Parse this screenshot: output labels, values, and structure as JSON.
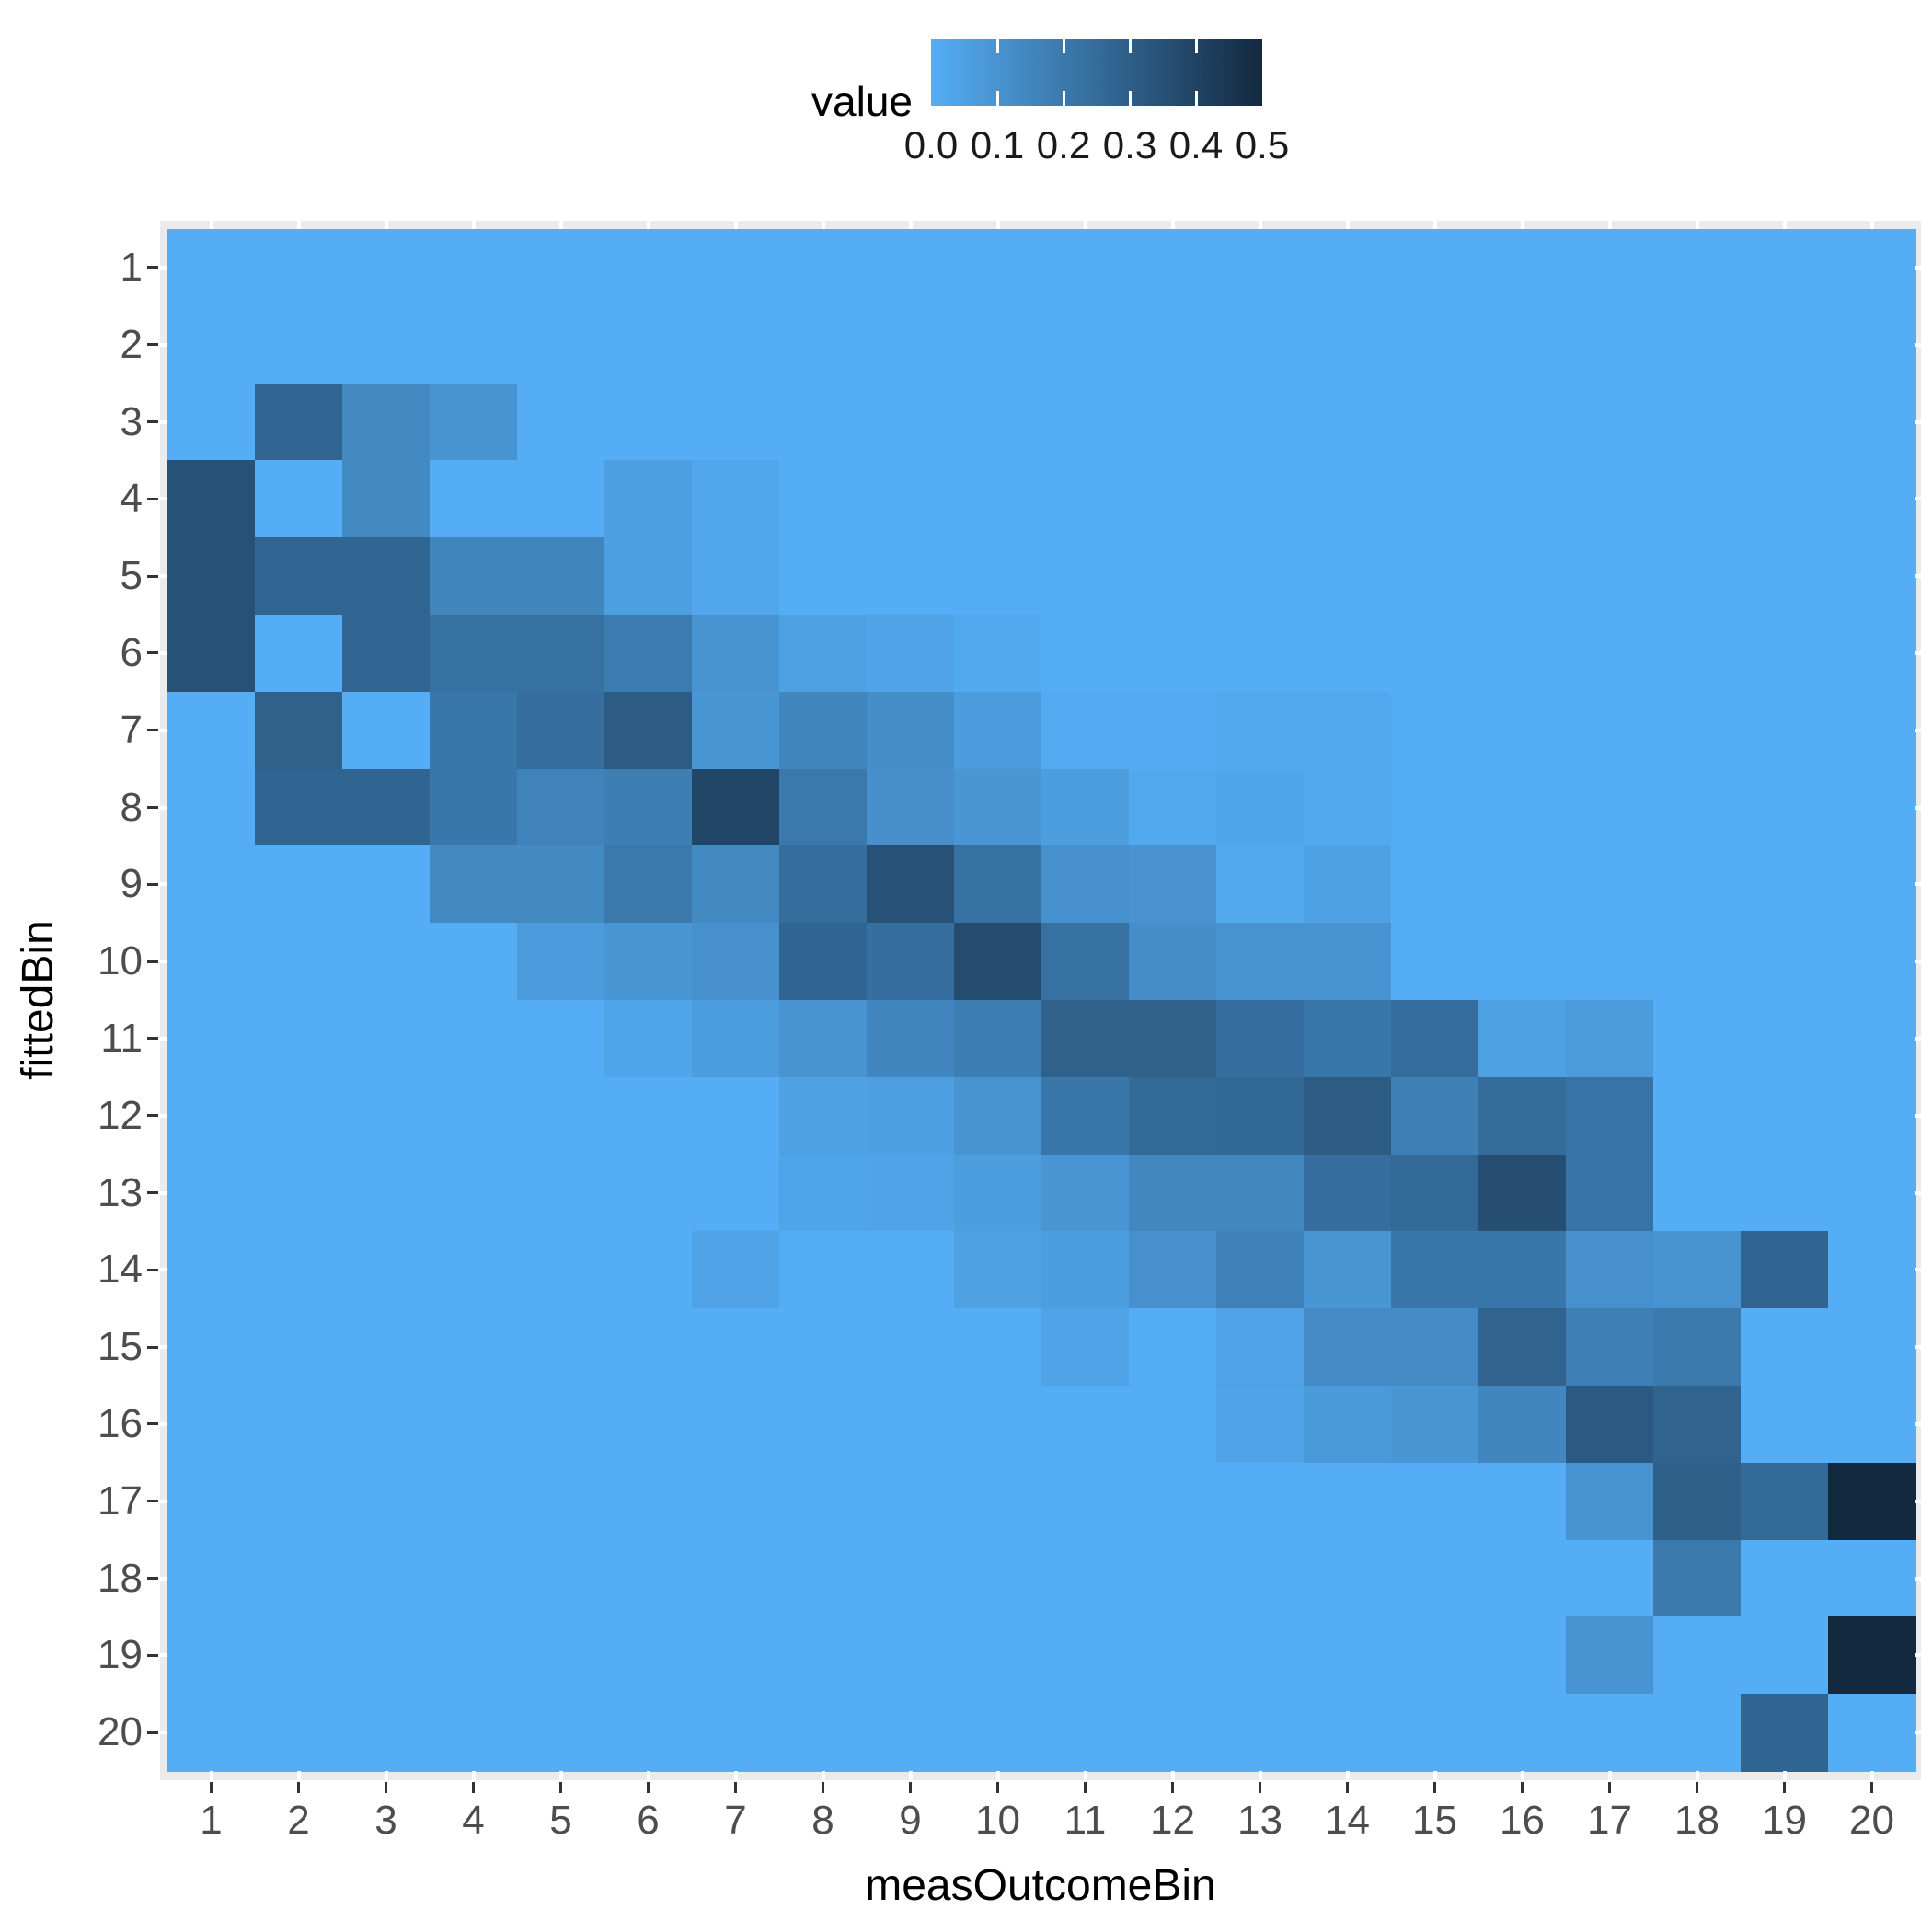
{
  "chart_data": {
    "type": "heatmap",
    "xlabel": "measOutcomeBin",
    "ylabel": "fittedBin",
    "x_ticks": [
      "1",
      "2",
      "3",
      "4",
      "5",
      "6",
      "7",
      "8",
      "9",
      "10",
      "11",
      "12",
      "13",
      "14",
      "15",
      "16",
      "17",
      "18",
      "19",
      "20"
    ],
    "y_ticks": [
      "1",
      "2",
      "3",
      "4",
      "5",
      "6",
      "7",
      "8",
      "9",
      "10",
      "11",
      "12",
      "13",
      "14",
      "15",
      "16",
      "17",
      "18",
      "19",
      "20"
    ],
    "legend": {
      "title": "value",
      "breaks": [
        "0.0",
        "0.1",
        "0.2",
        "0.3",
        "0.4",
        "0.5"
      ],
      "min": 0.0,
      "max": 0.5,
      "low_color": "#55AEF5",
      "high_color": "#13293F",
      "position": "top"
    },
    "grid": "on",
    "panel_bg": "#EBEBEB",
    "gridline_color": "#FFFFFF",
    "tick_color": "#333333",
    "tick_label_color": "#4D4D4D",
    "axis_title_color": "#000000",
    "matrix_rows_are_fittedBin_1_to_20_top_to_bottom": true,
    "matrix_cols_are_measOutcomeBin_1_to_20_left_to_right": true,
    "matrix": [
      [
        0,
        0,
        0,
        0,
        0,
        0,
        0,
        0,
        0,
        0,
        0,
        0,
        0,
        0,
        0,
        0,
        0,
        0,
        0,
        0
      ],
      [
        0,
        0,
        0,
        0,
        0,
        0,
        0,
        0,
        0,
        0,
        0,
        0,
        0,
        0,
        0,
        0,
        0,
        0,
        0,
        0
      ],
      [
        0,
        0.27,
        0.14,
        0.1,
        0,
        0,
        0,
        0,
        0,
        0,
        0,
        0,
        0,
        0,
        0,
        0,
        0,
        0,
        0,
        0
      ],
      [
        0.35,
        0,
        0.14,
        0,
        0,
        0.055,
        0.025,
        0,
        0,
        0,
        0,
        0,
        0,
        0,
        0,
        0,
        0,
        0,
        0,
        0
      ],
      [
        0.35,
        0.27,
        0.27,
        0.155,
        0.155,
        0.055,
        0.025,
        0,
        0,
        0,
        0,
        0,
        0,
        0,
        0,
        0,
        0,
        0,
        0,
        0
      ],
      [
        0.35,
        0,
        0.27,
        0.23,
        0.23,
        0.19,
        0.1,
        0.05,
        0.04,
        0.02,
        0,
        0,
        0,
        0,
        0,
        0,
        0,
        0,
        0,
        0
      ],
      [
        0,
        0.29,
        0,
        0.21,
        0.235,
        0.31,
        0.09,
        0.15,
        0.12,
        0.07,
        0.01,
        0.01,
        0.02,
        0.02,
        0,
        0,
        0,
        0,
        0,
        0
      ],
      [
        0,
        0.275,
        0.275,
        0.21,
        0.16,
        0.18,
        0.39,
        0.2,
        0.115,
        0.09,
        0.06,
        0.02,
        0.03,
        0.02,
        0,
        0,
        0,
        0,
        0,
        0
      ],
      [
        0,
        0,
        0,
        0.14,
        0.14,
        0.2,
        0.14,
        0.245,
        0.35,
        0.23,
        0.11,
        0.105,
        0.02,
        0.05,
        0,
        0,
        0,
        0,
        0,
        0
      ],
      [
        0,
        0,
        0,
        0,
        0.07,
        0.09,
        0.11,
        0.275,
        0.235,
        0.37,
        0.23,
        0.12,
        0.1,
        0.1,
        0,
        0,
        0,
        0,
        0,
        0
      ],
      [
        0,
        0,
        0,
        0,
        0,
        0.03,
        0.06,
        0.1,
        0.15,
        0.18,
        0.29,
        0.29,
        0.24,
        0.21,
        0.24,
        0.05,
        0.075,
        0,
        0,
        0
      ],
      [
        0,
        0,
        0,
        0,
        0,
        0,
        0,
        0.05,
        0.055,
        0.1,
        0.21,
        0.26,
        0.265,
        0.31,
        0.175,
        0.25,
        0.22,
        0,
        0,
        0
      ],
      [
        0,
        0,
        0,
        0,
        0,
        0,
        0,
        0.035,
        0.04,
        0.06,
        0.09,
        0.145,
        0.145,
        0.235,
        0.26,
        0.36,
        0.22,
        0,
        0,
        0
      ],
      [
        0,
        0,
        0,
        0,
        0,
        0,
        0.045,
        0,
        0,
        0.05,
        0.06,
        0.11,
        0.165,
        0.09,
        0.21,
        0.21,
        0.11,
        0.1,
        0.275,
        0
      ],
      [
        0,
        0,
        0,
        0,
        0,
        0,
        0,
        0,
        0,
        0,
        0.04,
        0,
        0.045,
        0.13,
        0.13,
        0.28,
        0.175,
        0.2,
        0,
        0
      ],
      [
        0,
        0,
        0,
        0,
        0,
        0,
        0,
        0,
        0,
        0,
        0,
        0,
        0.04,
        0.08,
        0.09,
        0.15,
        0.32,
        0.28,
        0,
        0
      ],
      [
        0,
        0,
        0,
        0,
        0,
        0,
        0,
        0,
        0,
        0,
        0,
        0,
        0,
        0,
        0,
        0,
        0.1,
        0.295,
        0.255,
        0.5
      ],
      [
        0,
        0,
        0,
        0,
        0,
        0,
        0,
        0,
        0,
        0,
        0,
        0,
        0,
        0,
        0,
        0,
        0,
        0.2,
        0,
        0
      ],
      [
        0,
        0,
        0,
        0,
        0,
        0,
        0,
        0,
        0,
        0,
        0,
        0,
        0,
        0,
        0,
        0,
        0.1,
        0,
        0,
        0.5
      ],
      [
        0,
        0,
        0,
        0,
        0,
        0,
        0,
        0,
        0,
        0,
        0,
        0,
        0,
        0,
        0,
        0,
        0,
        0,
        0.275,
        0
      ]
    ]
  }
}
